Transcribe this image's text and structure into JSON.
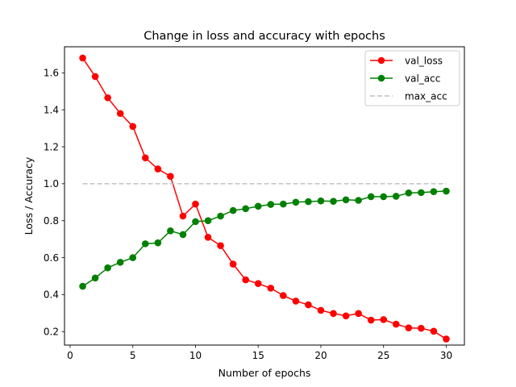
{
  "chart_data": {
    "type": "line",
    "title": "Change in loss and accuracy with epochs",
    "xlabel": "Number of epochs",
    "ylabel": "Loss / Accuracy",
    "xlim": [
      -0.45,
      31.45
    ],
    "ylim": [
      0.127,
      1.741
    ],
    "xticks": [
      0,
      5,
      10,
      15,
      20,
      25,
      30
    ],
    "yticks": [
      0.2,
      0.4,
      0.6,
      0.8,
      1.0,
      1.2,
      1.4,
      1.6
    ],
    "grid": false,
    "legend": "top-right",
    "x": [
      1,
      2,
      3,
      4,
      5,
      6,
      7,
      8,
      9,
      10,
      11,
      12,
      13,
      14,
      15,
      16,
      17,
      18,
      19,
      20,
      21,
      22,
      23,
      24,
      25,
      26,
      27,
      28,
      29,
      30
    ],
    "series": [
      {
        "name": "val_loss",
        "color": "#ff0000",
        "style": "solid",
        "marker": "circle",
        "values": [
          1.68,
          1.58,
          1.465,
          1.38,
          1.31,
          1.14,
          1.08,
          1.04,
          0.825,
          0.89,
          0.71,
          0.665,
          0.565,
          0.48,
          0.46,
          0.435,
          0.395,
          0.365,
          0.345,
          0.315,
          0.298,
          0.285,
          0.298,
          0.262,
          0.265,
          0.24,
          0.22,
          0.218,
          0.202,
          0.16
        ]
      },
      {
        "name": "val_acc",
        "color": "#008000",
        "style": "solid",
        "marker": "circle",
        "values": [
          0.445,
          0.49,
          0.545,
          0.575,
          0.6,
          0.675,
          0.68,
          0.745,
          0.725,
          0.795,
          0.8,
          0.825,
          0.855,
          0.865,
          0.878,
          0.888,
          0.89,
          0.9,
          0.903,
          0.907,
          0.905,
          0.913,
          0.91,
          0.93,
          0.93,
          0.932,
          0.95,
          0.952,
          0.957,
          0.96
        ]
      },
      {
        "name": "max_acc",
        "color": "#c0c0c0",
        "style": "dashed",
        "marker": "none",
        "values": [
          1.0,
          1.0,
          1.0,
          1.0,
          1.0,
          1.0,
          1.0,
          1.0,
          1.0,
          1.0,
          1.0,
          1.0,
          1.0,
          1.0,
          1.0,
          1.0,
          1.0,
          1.0,
          1.0,
          1.0,
          1.0,
          1.0,
          1.0,
          1.0,
          1.0,
          1.0,
          1.0,
          1.0,
          1.0,
          1.0
        ]
      }
    ]
  }
}
